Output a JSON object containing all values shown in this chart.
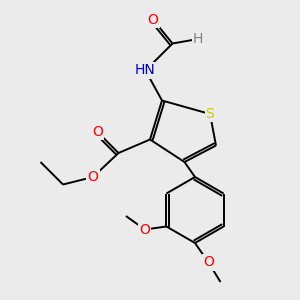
{
  "background_color": "#ebebeb",
  "bond_color": "#000000",
  "atom_colors": {
    "O": "#ff0000",
    "N": "#0000cd",
    "S": "#cccc00",
    "H": "#808080",
    "C": "#000000"
  },
  "figsize": [
    3.0,
    3.0
  ],
  "dpi": 100,
  "xlim": [
    0,
    10
  ],
  "ylim": [
    0,
    10
  ]
}
